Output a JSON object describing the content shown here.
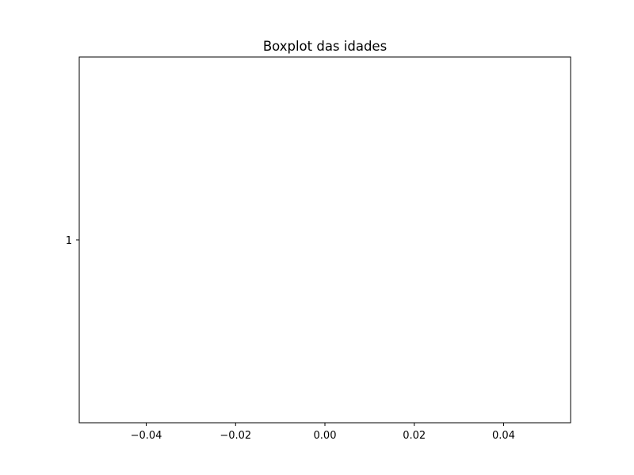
{
  "chart_data": {
    "type": "boxplot",
    "title": "Boxplot das idades",
    "orientation": "horizontal",
    "xlabel": "",
    "ylabel": "",
    "xlim": [
      -0.055,
      0.055
    ],
    "x_ticks": [
      -0.04,
      -0.02,
      0.0,
      0.02,
      0.04
    ],
    "x_tick_labels": [
      "−0.04",
      "−0.02",
      "0.00",
      "0.02",
      "0.04"
    ],
    "categories": [
      "1"
    ],
    "series": [
      {
        "values": []
      }
    ],
    "grid": false,
    "colors": {
      "axes": "#000000",
      "background": "#ffffff"
    }
  }
}
